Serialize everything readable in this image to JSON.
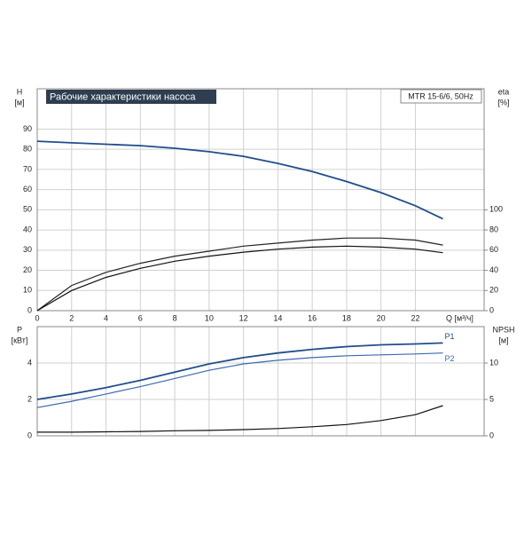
{
  "chart_data": [
    {
      "type": "line",
      "title": "Рабочие характеристики насоса",
      "model": "MTR 15-6/6, 50Hz",
      "ylabel": "H",
      "yunit": "[м]",
      "y2label": "eta",
      "y2unit": "[%]",
      "xlabel": "Q [м³/ч]",
      "x": [
        0,
        2,
        4,
        6,
        8,
        10,
        12,
        14,
        16,
        18,
        20,
        22,
        23.6
      ],
      "xlim": [
        0,
        26
      ],
      "xticks": [
        0,
        2,
        4,
        6,
        8,
        10,
        12,
        14,
        16,
        18,
        20,
        22
      ],
      "ylim": [
        0,
        110
      ],
      "yticks": [
        0,
        10,
        20,
        30,
        40,
        50,
        60,
        70,
        80,
        90
      ],
      "y2lim": [
        0,
        220
      ],
      "y2ticks": [
        0,
        20,
        40,
        60,
        80,
        100
      ],
      "grid": true,
      "series": [
        {
          "color": "#1f4e8c",
          "values": [
            84,
            83.2,
            82.5,
            81.8,
            80.5,
            78.8,
            76.5,
            73,
            69,
            64,
            58.5,
            52,
            45.5
          ]
        },
        {
          "color": "#222222",
          "axis": "y2",
          "values": [
            0,
            25,
            38,
            47,
            54,
            59,
            64,
            67,
            70,
            72,
            72,
            70,
            65
          ]
        },
        {
          "color": "#111111",
          "axis": "y2",
          "values": [
            0,
            20,
            33,
            42,
            49,
            54,
            58,
            61,
            63,
            64,
            63,
            61,
            57.5
          ]
        }
      ]
    },
    {
      "type": "line",
      "ylabel": "P",
      "yunit": "[кВт]",
      "y2label": "NPSH",
      "y2unit": "[м]",
      "x": [
        0,
        2,
        4,
        6,
        8,
        10,
        12,
        14,
        16,
        18,
        20,
        22,
        23.6
      ],
      "xlim": [
        0,
        26
      ],
      "xticks": [
        0,
        2,
        4,
        6,
        8,
        10,
        12,
        14,
        16,
        18,
        20,
        22
      ],
      "ylim": [
        0,
        6
      ],
      "yticks": [
        0,
        2,
        4
      ],
      "y2lim": [
        0,
        15
      ],
      "y2ticks": [
        0,
        5,
        10
      ],
      "grid": true,
      "series": [
        {
          "name": "P1",
          "color": "#1f4e8c",
          "values": [
            2.0,
            2.3,
            2.65,
            3.05,
            3.5,
            3.95,
            4.3,
            4.55,
            4.75,
            4.9,
            5.0,
            5.05,
            5.1
          ]
        },
        {
          "name": "P2",
          "color": "#3a6ab0",
          "values": [
            1.55,
            1.9,
            2.3,
            2.7,
            3.15,
            3.6,
            3.95,
            4.15,
            4.3,
            4.4,
            4.45,
            4.5,
            4.55
          ]
        },
        {
          "color": "#111111",
          "axis": "y2",
          "values": [
            0.5,
            0.5,
            0.55,
            0.6,
            0.7,
            0.75,
            0.85,
            1.0,
            1.25,
            1.55,
            2.1,
            2.9,
            4.15
          ]
        }
      ]
    }
  ]
}
